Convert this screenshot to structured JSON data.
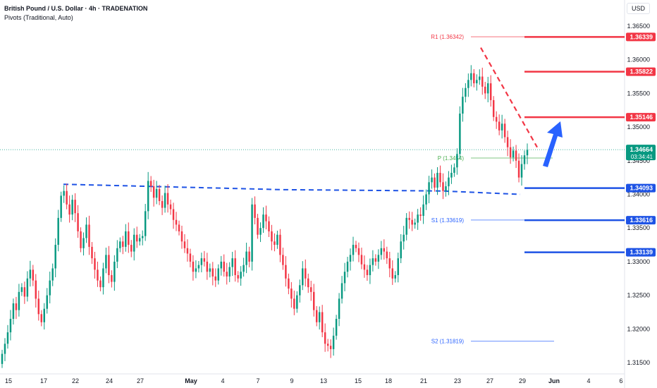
{
  "header": {
    "title": "British Pound / U.S. Dollar · 4h · TRADENATION",
    "indicator": "Pivots (Traditional, Auto)",
    "currency": "USD"
  },
  "chart_data": {
    "type": "candlestick",
    "symbol": "GBPUSD",
    "timeframe": "4h",
    "ylim": [
      1.3125,
      1.3665
    ],
    "y_ticks": [
      "1.36500",
      "1.36000",
      "1.35500",
      "1.35000",
      "1.34500",
      "1.34000",
      "1.33500",
      "1.33000",
      "1.32500",
      "1.32000",
      "1.31500"
    ],
    "x_ticks": [
      "15",
      "17",
      "22",
      "24",
      "27",
      "May",
      "4",
      "7",
      "9",
      "13",
      "15",
      "18",
      "21",
      "23",
      "27",
      "29",
      "Jun",
      "4",
      "6"
    ],
    "price_badges": [
      {
        "label": "1.36339",
        "value": 1.36339,
        "color": "#f23645"
      },
      {
        "label": "1.35822",
        "value": 1.35822,
        "color": "#f23645"
      },
      {
        "label": "1.35146",
        "value": 1.35146,
        "color": "#f23645"
      },
      {
        "label": "1.34664",
        "sublabel": "03:34:41",
        "value": 1.34664,
        "color": "#089981"
      },
      {
        "label": "1.34093",
        "value": 1.34093,
        "color": "#1e53e5"
      },
      {
        "label": "1.33616",
        "value": 1.33616,
        "color": "#1e53e5"
      },
      {
        "label": "1.33139",
        "value": 1.33139,
        "color": "#1e53e5"
      }
    ],
    "pivots": [
      {
        "label": "R1 (1.36342)",
        "value": 1.36342,
        "color": "#f23645"
      },
      {
        "label": "P (1.3454)",
        "value": 1.3454,
        "color": "#4caf50"
      },
      {
        "label": "S1 (1.33619)",
        "value": 1.33619,
        "color": "#2962ff"
      },
      {
        "label": "S2 (1.31819)",
        "value": 1.31819,
        "color": "#2962ff"
      }
    ],
    "resistance_lines": [
      1.36339,
      1.35822,
      1.35146
    ],
    "support_lines": [
      1.34093,
      1.33616,
      1.33139
    ],
    "current_price": 1.34664,
    "neckline": 1.341,
    "closes": [
      1.3163,
      1.3178,
      1.3195,
      1.3215,
      1.3238,
      1.3228,
      1.3255,
      1.3262,
      1.3248,
      1.3275,
      1.3288,
      1.3272,
      1.3245,
      1.3222,
      1.321,
      1.323,
      1.325,
      1.3272,
      1.329,
      1.3325,
      1.3365,
      1.3398,
      1.3405,
      1.3385,
      1.337,
      1.3392,
      1.3372,
      1.3345,
      1.332,
      1.3335,
      1.3355,
      1.3322,
      1.3305,
      1.3288,
      1.3272,
      1.3262,
      1.329,
      1.331,
      1.328,
      1.327,
      1.33,
      1.332,
      1.333,
      1.3322,
      1.3345,
      1.3325,
      1.3315,
      1.334,
      1.333,
      1.3335,
      1.3338,
      1.3375,
      1.342,
      1.3412,
      1.3395,
      1.3408,
      1.339,
      1.338,
      1.3402,
      1.3385,
      1.3378,
      1.3362,
      1.3355,
      1.3345,
      1.333,
      1.332,
      1.3312,
      1.33,
      1.3285,
      1.329,
      1.3295,
      1.3305,
      1.33,
      1.3285,
      1.329,
      1.3278,
      1.3272,
      1.329,
      1.33,
      1.3285,
      1.3278,
      1.3292,
      1.3305,
      1.328,
      1.3275,
      1.3285,
      1.3295,
      1.3315,
      1.33,
      1.3385,
      1.3365,
      1.334,
      1.335,
      1.337,
      1.336,
      1.3345,
      1.333,
      1.3325,
      1.334,
      1.331,
      1.3295,
      1.3275,
      1.326,
      1.3245,
      1.323,
      1.325,
      1.3265,
      1.329,
      1.3275,
      1.3262,
      1.3255,
      1.3228,
      1.321,
      1.3225,
      1.3195,
      1.3178,
      1.3175,
      1.317,
      1.319,
      1.3215,
      1.3245,
      1.3268,
      1.3285,
      1.33,
      1.331,
      1.3325,
      1.332,
      1.331,
      1.3296,
      1.3288,
      1.328,
      1.3295,
      1.3305,
      1.33,
      1.331,
      1.332,
      1.3315,
      1.3305,
      1.329,
      1.3275,
      1.328,
      1.3305,
      1.333,
      1.334,
      1.3365,
      1.3362,
      1.3355,
      1.3358,
      1.337,
      1.3368,
      1.3385,
      1.34,
      1.3418,
      1.3425,
      1.341,
      1.3432,
      1.3418,
      1.3405,
      1.3412,
      1.3425,
      1.3432,
      1.344,
      1.346,
      1.352,
      1.3545,
      1.3558,
      1.357,
      1.358,
      1.3565,
      1.357,
      1.3575,
      1.356,
      1.355,
      1.3565,
      1.354,
      1.3515,
      1.3508,
      1.3495,
      1.3505,
      1.3485,
      1.347,
      1.3455,
      1.3465,
      1.345,
      1.3425,
      1.3445,
      1.3458,
      1.3466
    ]
  }
}
